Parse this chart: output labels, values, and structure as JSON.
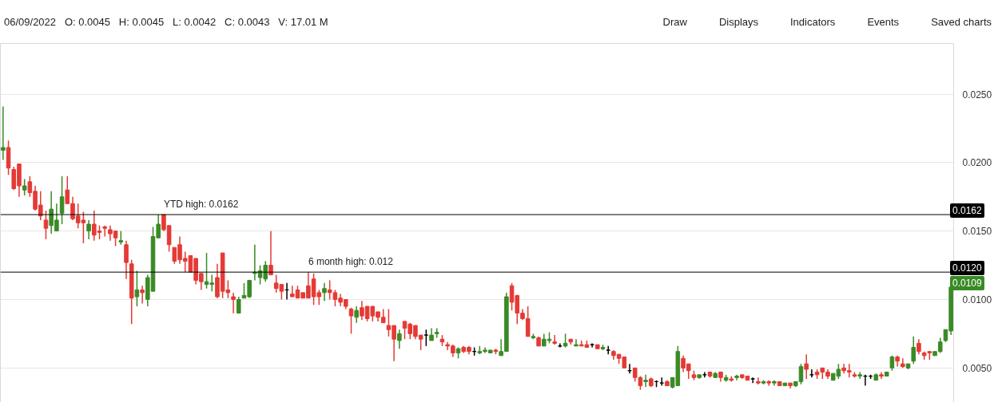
{
  "chart_data": {
    "type": "candlestick",
    "title": "06/09/2022   O: 0.0045   H: 0.0045   L: 0.0042   C: 0.0043   V: 17.01 M",
    "categories": [
      null,
      null,
      null,
      null,
      null,
      null,
      null,
      null,
      null,
      null,
      null,
      null,
      null,
      null,
      null,
      null,
      null,
      null,
      null,
      null,
      null,
      null,
      null,
      null,
      null,
      null,
      null,
      null,
      null,
      null,
      null,
      null,
      null,
      null,
      null,
      null,
      null,
      null,
      null,
      null,
      null,
      null,
      null,
      null,
      null,
      null,
      null,
      null,
      null,
      null,
      null,
      null,
      null,
      null,
      null,
      null,
      null,
      null,
      null,
      null,
      null,
      null,
      null,
      null,
      null,
      null,
      null,
      null,
      null,
      null,
      null,
      null,
      null,
      null,
      null,
      null,
      null,
      null,
      null,
      null,
      null,
      null,
      null,
      null,
      null,
      null,
      null,
      null,
      null,
      null,
      null,
      null,
      null,
      null,
      null,
      null,
      null,
      null,
      null,
      null,
      null,
      null,
      null,
      null,
      null,
      null,
      null,
      null,
      null,
      null,
      null,
      null,
      null,
      null,
      null,
      null,
      null,
      null,
      null,
      null,
      null,
      null,
      null,
      null,
      null,
      null,
      null,
      null,
      null,
      null,
      null,
      null,
      null,
      null,
      null,
      null,
      null,
      null,
      null,
      null,
      null,
      null,
      null,
      null,
      null,
      null,
      null,
      null,
      null,
      null,
      null,
      null,
      null,
      null,
      null,
      null,
      null,
      null,
      null,
      null,
      null,
      null,
      null,
      null,
      null,
      null,
      null,
      null,
      null,
      null,
      null,
      null,
      null,
      null,
      null,
      null,
      null,
      null
    ],
    "ohlc": [
      [
        0.0209,
        0.0241,
        0.0202,
        0.0211
      ],
      [
        0.0211,
        0.0216,
        0.0191,
        0.0196
      ],
      [
        0.0195,
        0.0197,
        0.018,
        0.0181
      ],
      [
        0.0199,
        0.0199,
        0.0175,
        0.0183
      ],
      [
        0.018,
        0.0188,
        0.0176,
        0.0183
      ],
      [
        0.0186,
        0.019,
        0.0175,
        0.0178
      ],
      [
        0.0179,
        0.0183,
        0.0165,
        0.0166
      ],
      [
        0.0169,
        0.0179,
        0.0158,
        0.0161
      ],
      [
        0.0158,
        0.0165,
        0.0144,
        0.0152
      ],
      [
        0.0154,
        0.0179,
        0.0148,
        0.0166
      ],
      [
        0.015,
        0.017,
        0.015,
        0.0158
      ],
      [
        0.0163,
        0.019,
        0.0155,
        0.0175
      ],
      [
        0.018,
        0.019,
        0.017,
        0.017
      ],
      [
        0.017,
        0.0175,
        0.0158,
        0.0159
      ],
      [
        0.0161,
        0.017,
        0.0152,
        0.0156
      ],
      [
        0.0158,
        0.0164,
        0.0141,
        0.0156
      ],
      [
        0.015,
        0.0158,
        0.0144,
        0.0155
      ],
      [
        0.0155,
        0.0165,
        0.0143,
        0.0147
      ],
      [
        0.015,
        0.0154,
        0.0144,
        0.0149
      ],
      [
        0.0153,
        0.0154,
        0.0146,
        0.0152
      ],
      [
        0.0151,
        0.0154,
        0.0143,
        0.0148
      ],
      [
        0.015,
        0.015,
        0.0139,
        0.0145
      ],
      [
        0.0142,
        0.015,
        0.014,
        0.0143
      ],
      [
        0.014,
        0.0143,
        0.0115,
        0.0127
      ],
      [
        0.0126,
        0.0129,
        0.0082,
        0.0101
      ],
      [
        0.0102,
        0.0121,
        0.0095,
        0.0107
      ],
      [
        0.0107,
        0.011,
        0.0097,
        0.0105
      ],
      [
        0.01,
        0.0118,
        0.0095,
        0.0116
      ],
      [
        0.0106,
        0.0153,
        0.0106,
        0.0146
      ],
      [
        0.0145,
        0.0162,
        0.0145,
        0.0155
      ],
      [
        0.0162,
        0.0162,
        0.015,
        0.0151
      ],
      [
        0.0154,
        0.0154,
        0.0135,
        0.014
      ],
      [
        0.0138,
        0.0138,
        0.0126,
        0.0128
      ],
      [
        0.014,
        0.0146,
        0.0126,
        0.0129
      ],
      [
        0.013,
        0.0135,
        0.012,
        0.0128
      ],
      [
        0.0132,
        0.0132,
        0.012,
        0.012
      ],
      [
        0.013,
        0.013,
        0.0111,
        0.0114
      ],
      [
        0.0119,
        0.0119,
        0.0107,
        0.0113
      ],
      [
        0.0111,
        0.0134,
        0.0108,
        0.0113
      ],
      [
        0.0111,
        0.0118,
        0.0106,
        0.0112
      ],
      [
        0.0116,
        0.0126,
        0.0101,
        0.0102
      ],
      [
        0.0134,
        0.0134,
        0.0101,
        0.0106
      ],
      [
        0.0107,
        0.0114,
        0.0101,
        0.0105
      ],
      [
        0.0102,
        0.0105,
        0.009,
        0.01
      ],
      [
        0.009,
        0.0102,
        0.009,
        0.01
      ],
      [
        0.0101,
        0.0112,
        0.0101,
        0.0103
      ],
      [
        0.0102,
        0.0114,
        0.0101,
        0.0114
      ],
      [
        0.0119,
        0.014,
        0.0114,
        0.012
      ],
      [
        0.0116,
        0.0125,
        0.0111,
        0.0121
      ],
      [
        0.0115,
        0.0128,
        0.0113,
        0.0125
      ],
      [
        0.0125,
        0.015,
        0.0118,
        0.0118
      ],
      [
        0.0112,
        0.0118,
        0.0105,
        0.0108
      ],
      [
        0.0111,
        0.0111,
        0.01,
        0.0106
      ],
      [
        0.0107,
        0.0112,
        0.01,
        0.0107
      ],
      [
        0.0104,
        0.011,
        0.0102,
        0.0102
      ],
      [
        0.0107,
        0.011,
        0.0101,
        0.0101
      ],
      [
        0.0105,
        0.0105,
        0.0101,
        0.0101
      ],
      [
        0.011,
        0.012,
        0.0101,
        0.0101
      ],
      [
        0.0115,
        0.0119,
        0.0096,
        0.0102
      ],
      [
        0.0105,
        0.0107,
        0.0096,
        0.0102
      ],
      [
        0.0105,
        0.0112,
        0.0099,
        0.0108
      ],
      [
        0.0107,
        0.0114,
        0.01,
        0.0105
      ],
      [
        0.0105,
        0.0107,
        0.0095,
        0.01
      ],
      [
        0.0101,
        0.0104,
        0.0095,
        0.0098
      ],
      [
        0.01,
        0.01,
        0.0093,
        0.0095
      ],
      [
        0.0093,
        0.0094,
        0.0075,
        0.0088
      ],
      [
        0.0087,
        0.0095,
        0.0083,
        0.0092
      ],
      [
        0.0094,
        0.0099,
        0.0085,
        0.0088
      ],
      [
        0.0095,
        0.0095,
        0.0084,
        0.0086
      ],
      [
        0.0095,
        0.0095,
        0.0084,
        0.0088
      ],
      [
        0.0091,
        0.0091,
        0.0084,
        0.0087
      ],
      [
        0.0087,
        0.0093,
        0.0083,
        0.0083
      ],
      [
        0.0081,
        0.0093,
        0.0073,
        0.0078
      ],
      [
        0.0081,
        0.0081,
        0.0055,
        0.0071
      ],
      [
        0.007,
        0.0078,
        0.0064,
        0.0075
      ],
      [
        0.0084,
        0.0084,
        0.0071,
        0.0079
      ],
      [
        0.0082,
        0.0083,
        0.0071,
        0.0075
      ],
      [
        0.0081,
        0.0081,
        0.0071,
        0.0073
      ],
      [
        0.0074,
        0.0074,
        0.0063,
        0.0071
      ],
      [
        0.0074,
        0.0078,
        0.0066,
        0.0074
      ],
      [
        0.007,
        0.0079,
        0.007,
        0.0074
      ],
      [
        0.0075,
        0.0079,
        0.0072,
        0.0076
      ],
      [
        0.0071,
        0.0074,
        0.0066,
        0.0069
      ],
      [
        0.0067,
        0.0069,
        0.0063,
        0.0066
      ],
      [
        0.0066,
        0.0067,
        0.0058,
        0.0061
      ],
      [
        0.0061,
        0.0065,
        0.0057,
        0.0064
      ],
      [
        0.0065,
        0.0066,
        0.0061,
        0.0062
      ],
      [
        0.0065,
        0.0066,
        0.006,
        0.0062
      ],
      [
        0.0062,
        0.0065,
        0.0059,
        0.0062
      ],
      [
        0.0061,
        0.0066,
        0.006,
        0.0062
      ],
      [
        0.0062,
        0.0065,
        0.0061,
        0.0063
      ],
      [
        0.0061,
        0.0063,
        0.0061,
        0.0063
      ],
      [
        0.0063,
        0.0064,
        0.006,
        0.0062
      ],
      [
        0.0059,
        0.0071,
        0.0059,
        0.0062
      ],
      [
        0.0062,
        0.0105,
        0.0062,
        0.0102
      ],
      [
        0.011,
        0.0112,
        0.0092,
        0.0098
      ],
      [
        0.0103,
        0.0103,
        0.0082,
        0.009
      ],
      [
        0.009,
        0.0093,
        0.0085,
        0.0086
      ],
      [
        0.0086,
        0.0095,
        0.0073,
        0.0073
      ],
      [
        0.0072,
        0.0075,
        0.0071,
        0.0073
      ],
      [
        0.0072,
        0.0073,
        0.0066,
        0.0066
      ],
      [
        0.0066,
        0.0075,
        0.0066,
        0.0071
      ],
      [
        0.007,
        0.0076,
        0.0068,
        0.0071
      ],
      [
        0.0069,
        0.0074,
        0.0067,
        0.0068
      ],
      [
        0.0066,
        0.0068,
        0.0065,
        0.0066
      ],
      [
        0.0066,
        0.0075,
        0.0065,
        0.0068
      ],
      [
        0.0071,
        0.0071,
        0.0067,
        0.0069
      ],
      [
        0.0066,
        0.0071,
        0.0066,
        0.0067
      ],
      [
        0.0067,
        0.007,
        0.0066,
        0.0066
      ],
      [
        0.0067,
        0.007,
        0.0065,
        0.0065
      ],
      [
        0.0067,
        0.0068,
        0.0065,
        0.0067
      ],
      [
        0.0067,
        0.0067,
        0.0064,
        0.0064
      ],
      [
        0.0064,
        0.0067,
        0.0063,
        0.0065
      ],
      [
        0.0063,
        0.0066,
        0.006,
        0.0063
      ],
      [
        0.0062,
        0.0063,
        0.0056,
        0.0059
      ],
      [
        0.006,
        0.006,
        0.0053,
        0.0057
      ],
      [
        0.0058,
        0.0058,
        0.005,
        0.005
      ],
      [
        0.0048,
        0.0053,
        0.0046,
        0.0048
      ],
      [
        0.005,
        0.005,
        0.004,
        0.0043
      ],
      [
        0.0043,
        0.0044,
        0.0034,
        0.0037
      ],
      [
        0.004,
        0.0045,
        0.0036,
        0.0041
      ],
      [
        0.0042,
        0.0043,
        0.0036,
        0.0037
      ],
      [
        0.004,
        0.0041,
        0.0036,
        0.004
      ],
      [
        0.0039,
        0.0043,
        0.0037,
        0.0039
      ],
      [
        0.004,
        0.0041,
        0.0037,
        0.0037
      ],
      [
        0.0036,
        0.0043,
        0.0035,
        0.0043
      ],
      [
        0.0037,
        0.0066,
        0.0037,
        0.0062
      ],
      [
        0.0057,
        0.0059,
        0.0047,
        0.005
      ],
      [
        0.0053,
        0.0053,
        0.0042,
        0.0048
      ],
      [
        0.0045,
        0.0048,
        0.0041,
        0.0043
      ],
      [
        0.0043,
        0.0045,
        0.0042,
        0.0045
      ],
      [
        0.0045,
        0.0047,
        0.0043,
        0.0045
      ],
      [
        0.0047,
        0.0047,
        0.0043,
        0.0044
      ],
      [
        0.0043,
        0.0047,
        0.0043,
        0.0046
      ],
      [
        0.0047,
        0.0047,
        0.004,
        0.0043
      ],
      [
        0.0041,
        0.0045,
        0.004,
        0.0043
      ],
      [
        0.0042,
        0.0044,
        0.004,
        0.0041
      ],
      [
        0.0043,
        0.0045,
        0.0041,
        0.0044
      ],
      [
        0.0045,
        0.0045,
        0.0042,
        0.0043
      ],
      [
        0.0044,
        0.0044,
        0.0041,
        0.0041
      ],
      [
        0.0042,
        0.0043,
        0.0039,
        0.0042
      ],
      [
        0.004,
        0.0043,
        0.0038,
        0.0039
      ],
      [
        0.0039,
        0.0041,
        0.0038,
        0.004
      ],
      [
        0.004,
        0.0041,
        0.0037,
        0.0039
      ],
      [
        0.0039,
        0.0041,
        0.0037,
        0.004
      ],
      [
        0.004,
        0.004,
        0.0037,
        0.0037
      ],
      [
        0.0037,
        0.0039,
        0.0037,
        0.0039
      ],
      [
        0.0039,
        0.0039,
        0.0035,
        0.0037
      ],
      [
        0.0037,
        0.004,
        0.0036,
        0.004
      ],
      [
        0.004,
        0.0053,
        0.0038,
        0.0051
      ],
      [
        0.0053,
        0.006,
        0.0042,
        0.0049
      ],
      [
        0.0045,
        0.0049,
        0.0043,
        0.0045
      ],
      [
        0.0047,
        0.0049,
        0.0042,
        0.0045
      ],
      [
        0.005,
        0.005,
        0.0042,
        0.0047
      ],
      [
        0.0047,
        0.0049,
        0.0042,
        0.0044
      ],
      [
        0.0041,
        0.0046,
        0.0041,
        0.0046
      ],
      [
        0.0044,
        0.0053,
        0.0042,
        0.0049
      ],
      [
        0.005,
        0.0053,
        0.0046,
        0.0048
      ],
      [
        0.0048,
        0.0053,
        0.0043,
        0.0047
      ],
      [
        0.0045,
        0.0047,
        0.0043,
        0.0044
      ],
      [
        0.0044,
        0.0047,
        0.0042,
        0.0045
      ],
      [
        0.0044,
        0.0045,
        0.0037,
        0.0044
      ],
      [
        0.0044,
        0.0045,
        0.0042,
        0.0044
      ],
      [
        0.0041,
        0.0046,
        0.0041,
        0.0045
      ],
      [
        0.0045,
        0.0047,
        0.0042,
        0.0044
      ],
      [
        0.0044,
        0.0047,
        0.0044,
        0.0047
      ],
      [
        0.005,
        0.0059,
        0.0048,
        0.0058
      ],
      [
        0.0058,
        0.0059,
        0.0051,
        0.0055
      ],
      [
        0.0053,
        0.0057,
        0.005,
        0.0051
      ],
      [
        0.005,
        0.0053,
        0.0049,
        0.0053
      ],
      [
        0.0055,
        0.0073,
        0.0053,
        0.0065
      ],
      [
        0.0068,
        0.0071,
        0.006,
        0.0062
      ],
      [
        0.0061,
        0.0062,
        0.0056,
        0.0059
      ],
      [
        0.0062,
        0.0062,
        0.0056,
        0.0061
      ],
      [
        0.0059,
        0.0062,
        0.0059,
        0.0062
      ],
      [
        0.0062,
        0.0072,
        0.0061,
        0.0069
      ],
      [
        0.007,
        0.0078,
        0.0069,
        0.0078
      ],
      [
        0.0077,
        0.0116,
        0.0074,
        0.0109
      ]
    ],
    "colors": [
      "#3a8a26",
      "#e43a35",
      "#e43a35",
      "#e43a35",
      "#3a8a26",
      "#e43a35",
      "#e43a35",
      "#e43a35",
      "#e43a35",
      "#3a8a26",
      "#3a8a26",
      "#3a8a26",
      "#e43a35",
      "#e43a35",
      "#e43a35",
      "#e43a35",
      "#3a8a26",
      "#e43a35",
      "#e43a35",
      "#e43a35",
      "#e43a35",
      "#e43a35",
      "#3a8a26",
      "#e43a35",
      "#e43a35",
      "#3a8a26",
      "#e43a35",
      "#3a8a26",
      "#3a8a26",
      "#3a8a26",
      "#e43a35",
      "#e43a35",
      "#e43a35",
      "#e43a35",
      "#e43a35",
      "#e43a35",
      "#e43a35",
      "#e43a35",
      "#3a8a26",
      "#3a8a26",
      "#e43a35",
      "#e43a35",
      "#e43a35",
      "#e43a35",
      "#3a8a26",
      "#3a8a26",
      "#3a8a26",
      "#3a8a26",
      "#3a8a26",
      "#3a8a26",
      "#e43a35",
      "#e43a35",
      "#e43a35",
      "#000000",
      "#e43a35",
      "#e43a35",
      "#e43a35",
      "#e43a35",
      "#e43a35",
      "#e43a35",
      "#3a8a26",
      "#e43a35",
      "#e43a35",
      "#e43a35",
      "#e43a35",
      "#e43a35",
      "#3a8a26",
      "#e43a35",
      "#e43a35",
      "#e43a35",
      "#e43a35",
      "#e43a35",
      "#e43a35",
      "#e43a35",
      "#3a8a26",
      "#e43a35",
      "#e43a35",
      "#e43a35",
      "#e43a35",
      "#000000",
      "#3a8a26",
      "#3a8a26",
      "#e43a35",
      "#e43a35",
      "#e43a35",
      "#3a8a26",
      "#e43a35",
      "#e43a35",
      "#000000",
      "#3a8a26",
      "#3a8a26",
      "#3a8a26",
      "#e43a35",
      "#3a8a26",
      "#3a8a26",
      "#e43a35",
      "#e43a35",
      "#e43a35",
      "#e43a35",
      "#3a8a26",
      "#e43a35",
      "#3a8a26",
      "#3a8a26",
      "#e43a35",
      "#000000",
      "#3a8a26",
      "#e43a35",
      "#3a8a26",
      "#e43a35",
      "#e43a35",
      "#000000",
      "#e43a35",
      "#3a8a26",
      "#000000",
      "#e43a35",
      "#e43a35",
      "#e43a35",
      "#000000",
      "#e43a35",
      "#e43a35",
      "#3a8a26",
      "#e43a35",
      "#000000",
      "#000000",
      "#e43a35",
      "#3a8a26",
      "#3a8a26",
      "#e43a35",
      "#e43a35",
      "#e43a35",
      "#3a8a26",
      "#000000",
      "#e43a35",
      "#3a8a26",
      "#e43a35",
      "#3a8a26",
      "#e43a35",
      "#3a8a26",
      "#e43a35",
      "#e43a35",
      "#000000",
      "#e43a35",
      "#3a8a26",
      "#e43a35",
      "#3a8a26",
      "#e43a35",
      "#3a8a26",
      "#e43a35",
      "#3a8a26",
      "#3a8a26",
      "#e43a35",
      "#000000",
      "#e43a35",
      "#e43a35",
      "#e43a35",
      "#3a8a26",
      "#3a8a26",
      "#e43a35",
      "#e43a35",
      "#e43a35",
      "#3a8a26",
      "#000000",
      "#000000",
      "#3a8a26",
      "#e43a35",
      "#3a8a26",
      "#3a8a26",
      "#e43a35",
      "#e43a35",
      "#3a8a26",
      "#3a8a26",
      "#e43a35",
      "#e43a35",
      "#e43a35",
      "#3a8a26",
      "#3a8a26",
      "#3a8a26",
      "#3a8a26"
    ],
    "ylim": [
      0.0019,
      0.0287
    ],
    "yticks": [
      {
        "value": 0.005,
        "label": "0.0050"
      },
      {
        "value": 0.01,
        "label": "0.0100"
      },
      {
        "value": 0.015,
        "label": "0.0150"
      },
      {
        "value": 0.02,
        "label": "0.0200"
      },
      {
        "value": 0.025,
        "label": "0.0250"
      }
    ],
    "grid": "y",
    "tick_labels": "y",
    "ref_lines": [
      {
        "axis": "y",
        "value": 0.0162,
        "label": "YTD high: 0.0162",
        "color": "#000000"
      },
      {
        "axis": "y",
        "value": 0.012,
        "label": "6 month high: 0.012",
        "color": "#000000"
      }
    ],
    "annotations": [
      "Draw",
      "Displays",
      "Indicators",
      "Events",
      "Saved charts",
      "0.0162",
      "0.0120",
      "0.0109"
    ]
  }
}
